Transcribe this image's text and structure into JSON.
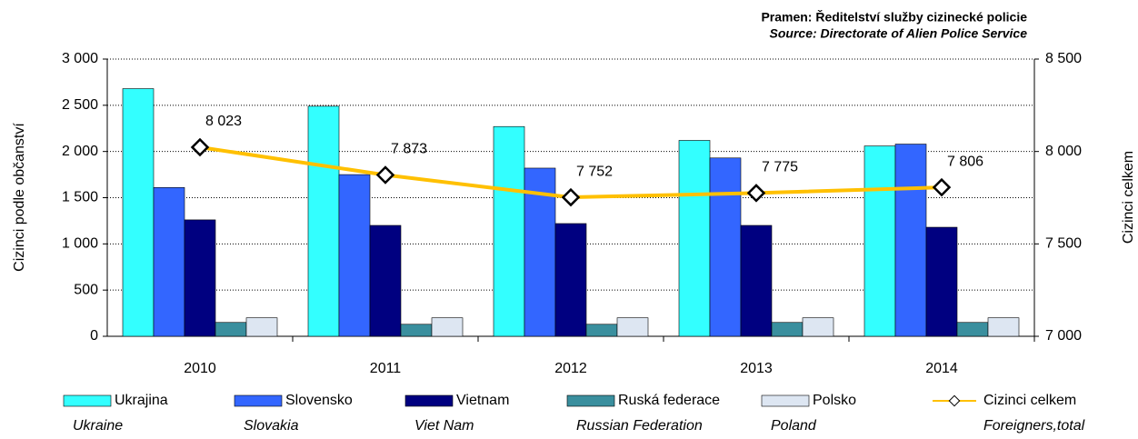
{
  "chart_data": {
    "type": "bar_line",
    "source_cz": "Pramen: Ředitelství služby cizinecké policie",
    "source_en": "Source: Directorate of Alien Police Service",
    "ylabel": "Cizinci podle občanství",
    "y2label": "Cizinci celkem",
    "categories": [
      "2010",
      "2011",
      "2012",
      "2013",
      "2014"
    ],
    "ylim": [
      0,
      3000
    ],
    "yticks": [
      0,
      500,
      {
        "value": 1000,
        "label": "1 000"
      },
      {
        "value": 1500,
        "label": "1 500"
      },
      {
        "value": 2000,
        "label": "2 000"
      },
      {
        "value": 2500,
        "label": "2 500"
      },
      {
        "value": 3000,
        "label": "3 000"
      }
    ],
    "y2lim": [
      7000,
      8500
    ],
    "y2ticks": [
      {
        "value": 7000,
        "label": "7 000"
      },
      {
        "value": 7500,
        "label": "7 500"
      },
      {
        "value": 8000,
        "label": "8 000"
      },
      {
        "value": 8500,
        "label": "8 500"
      }
    ],
    "grid": true,
    "series": [
      {
        "name": "Ukrajina",
        "name_en": "Ukraine",
        "kind": "bar",
        "color": "#33ffff",
        "values": [
          2680,
          2490,
          2270,
          2120,
          2060
        ]
      },
      {
        "name": "Slovensko",
        "name_en": "Slovakia",
        "kind": "bar",
        "color": "#3366ff",
        "values": [
          1610,
          1750,
          1820,
          1930,
          2080
        ]
      },
      {
        "name": "Vietnam",
        "name_en": "Viet Nam",
        "kind": "bar",
        "color": "#000080",
        "values": [
          1260,
          1200,
          1220,
          1200,
          1180
        ]
      },
      {
        "name": "Ruská federace",
        "name_en": "Russian Federation",
        "kind": "bar",
        "color": "#3a8f9e",
        "values": [
          150,
          130,
          130,
          150,
          150
        ]
      },
      {
        "name": "Polsko",
        "name_en": "Poland",
        "kind": "bar",
        "color": "#dde6f2",
        "values": [
          200,
          200,
          200,
          200,
          200
        ]
      },
      {
        "name": "Cizinci celkem",
        "name_en": "Foreigners,total",
        "kind": "line",
        "axis": "y2",
        "color": "#ffc000",
        "values": [
          8023,
          7873,
          7752,
          7775,
          7806
        ],
        "value_labels": [
          "8 023",
          "7 873",
          "7 752",
          "7 775",
          "7 806"
        ]
      }
    ]
  }
}
